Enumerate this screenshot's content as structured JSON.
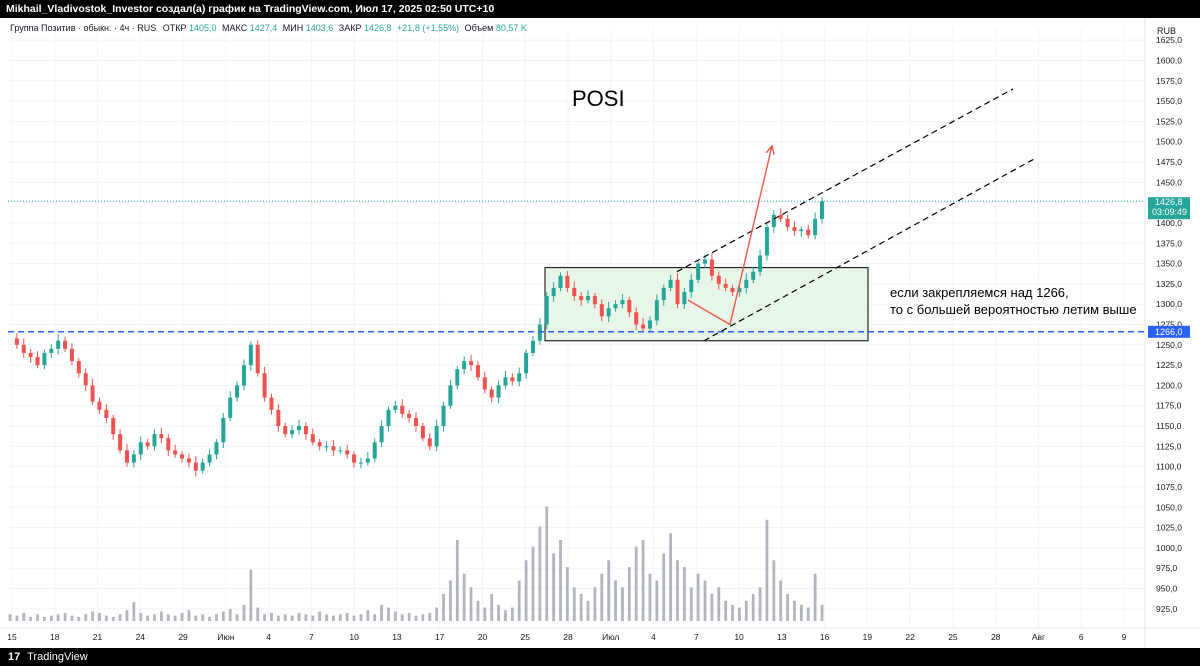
{
  "header": {
    "text": "Mikhail_Vladivostok_Investor создал(а) график на TradingView.com, Июл 17, 2025 02:50 UTC+10"
  },
  "footer": {
    "logo": "17",
    "brand": "TradingView"
  },
  "legend": {
    "symbol": "Группа Позитив · обыкн. · 4ч · RUS",
    "open_label": "ОТКР",
    "open_value": "1405,0",
    "high_label": "МАКС",
    "high_value": "1427,4",
    "low_label": "МИН",
    "low_value": "1403,6",
    "close_label": "ЗАКР",
    "close_value": "1426,8",
    "change": "+21,8 (+1,55%)",
    "volume_label": "Объем",
    "volume_value": "80,57 K"
  },
  "chart_data": {
    "type": "candlestick",
    "title": "POSI",
    "currency": "RUB",
    "ylim": [
      910,
      1640
    ],
    "y_ticks": [
      "925,0",
      "950,0",
      "975,0",
      "1000,0",
      "1025,0",
      "1050,0",
      "1075,0",
      "1100,0",
      "1125,0",
      "1150,0",
      "1175,0",
      "1200,0",
      "1225,0",
      "1250,0",
      "1275,0",
      "1300,0",
      "1325,0",
      "1350,0",
      "1375,0",
      "1400,0",
      "1425,0",
      "1450,0",
      "1475,0",
      "1500,0",
      "1525,0",
      "1550,0",
      "1575,0",
      "1600,0",
      "1625,0"
    ],
    "x_ticks": [
      "15",
      "18",
      "21",
      "24",
      "29",
      "Июн",
      "4",
      "7",
      "10",
      "13",
      "17",
      "20",
      "25",
      "28",
      "Июл",
      "4",
      "7",
      "10",
      "13",
      "16",
      "19",
      "22",
      "25",
      "28",
      "Авг",
      "6",
      "9"
    ],
    "last_price_label": "1426,8",
    "last_price_timer": "03:09:49",
    "level_label": "1266,0",
    "level": 1266,
    "box": {
      "y_low": 1255,
      "y_high": 1345
    },
    "annotation_line1": "если закрепляемся над 1266,",
    "annotation_line2": "то с большей вероятностью летим выше",
    "price_path": [
      1258,
      1250,
      1240,
      1235,
      1225,
      1240,
      1245,
      1255,
      1245,
      1230,
      1215,
      1200,
      1180,
      1170,
      1160,
      1140,
      1120,
      1105,
      1115,
      1130,
      1125,
      1140,
      1135,
      1120,
      1115,
      1110,
      1105,
      1095,
      1105,
      1115,
      1130,
      1160,
      1185,
      1200,
      1225,
      1250,
      1215,
      1185,
      1170,
      1150,
      1140,
      1145,
      1150,
      1140,
      1130,
      1125,
      1125,
      1120,
      1120,
      1115,
      1105,
      1105,
      1110,
      1130,
      1150,
      1170,
      1175,
      1165,
      1160,
      1150,
      1135,
      1125,
      1150,
      1175,
      1200,
      1220,
      1230,
      1225,
      1210,
      1195,
      1185,
      1200,
      1210,
      1205,
      1215,
      1240,
      1255,
      1275,
      1310,
      1320,
      1335,
      1320,
      1310,
      1305,
      1310,
      1300,
      1285,
      1295,
      1300,
      1305,
      1290,
      1275,
      1270,
      1280,
      1305,
      1320,
      1330,
      1300,
      1315,
      1330,
      1350,
      1355,
      1335,
      1325,
      1320,
      1315,
      1320,
      1330,
      1340,
      1360,
      1395,
      1410,
      1405,
      1395,
      1390,
      1392,
      1385,
      1405,
      1426.8
    ],
    "volumes": [
      0.05,
      0.04,
      0.06,
      0.03,
      0.05,
      0.03,
      0.04,
      0.05,
      0.06,
      0.04,
      0.03,
      0.05,
      0.07,
      0.06,
      0.04,
      0.03,
      0.05,
      0.08,
      0.14,
      0.06,
      0.04,
      0.05,
      0.07,
      0.05,
      0.04,
      0.06,
      0.08,
      0.04,
      0.05,
      0.03,
      0.05,
      0.07,
      0.09,
      0.05,
      0.12,
      0.38,
      0.1,
      0.05,
      0.06,
      0.04,
      0.05,
      0.04,
      0.06,
      0.05,
      0.04,
      0.07,
      0.05,
      0.04,
      0.05,
      0.06,
      0.04,
      0.05,
      0.08,
      0.05,
      0.12,
      0.1,
      0.07,
      0.05,
      0.06,
      0.04,
      0.05,
      0.06,
      0.1,
      0.2,
      0.3,
      0.6,
      0.35,
      0.25,
      0.15,
      0.1,
      0.2,
      0.12,
      0.08,
      0.1,
      0.3,
      0.45,
      0.55,
      0.7,
      0.85,
      0.5,
      0.6,
      0.4,
      0.25,
      0.2,
      0.15,
      0.25,
      0.35,
      0.45,
      0.3,
      0.25,
      0.4,
      0.55,
      0.6,
      0.35,
      0.3,
      0.5,
      0.65,
      0.45,
      0.4,
      0.25,
      0.35,
      0.3,
      0.2,
      0.25,
      0.15,
      0.12,
      0.1,
      0.15,
      0.2,
      0.25,
      0.75,
      0.45,
      0.3,
      0.2,
      0.15,
      0.12,
      0.1,
      0.35,
      0.12
    ]
  },
  "colors": {
    "up": "#26a69a",
    "down": "#ef5350",
    "volume": "#b2b5be",
    "level": "#2962ff",
    "arrow": "#e8594a",
    "box_fill": "#e8f5e9",
    "grid": "#f0f3fa",
    "axis_text": "#131722"
  }
}
